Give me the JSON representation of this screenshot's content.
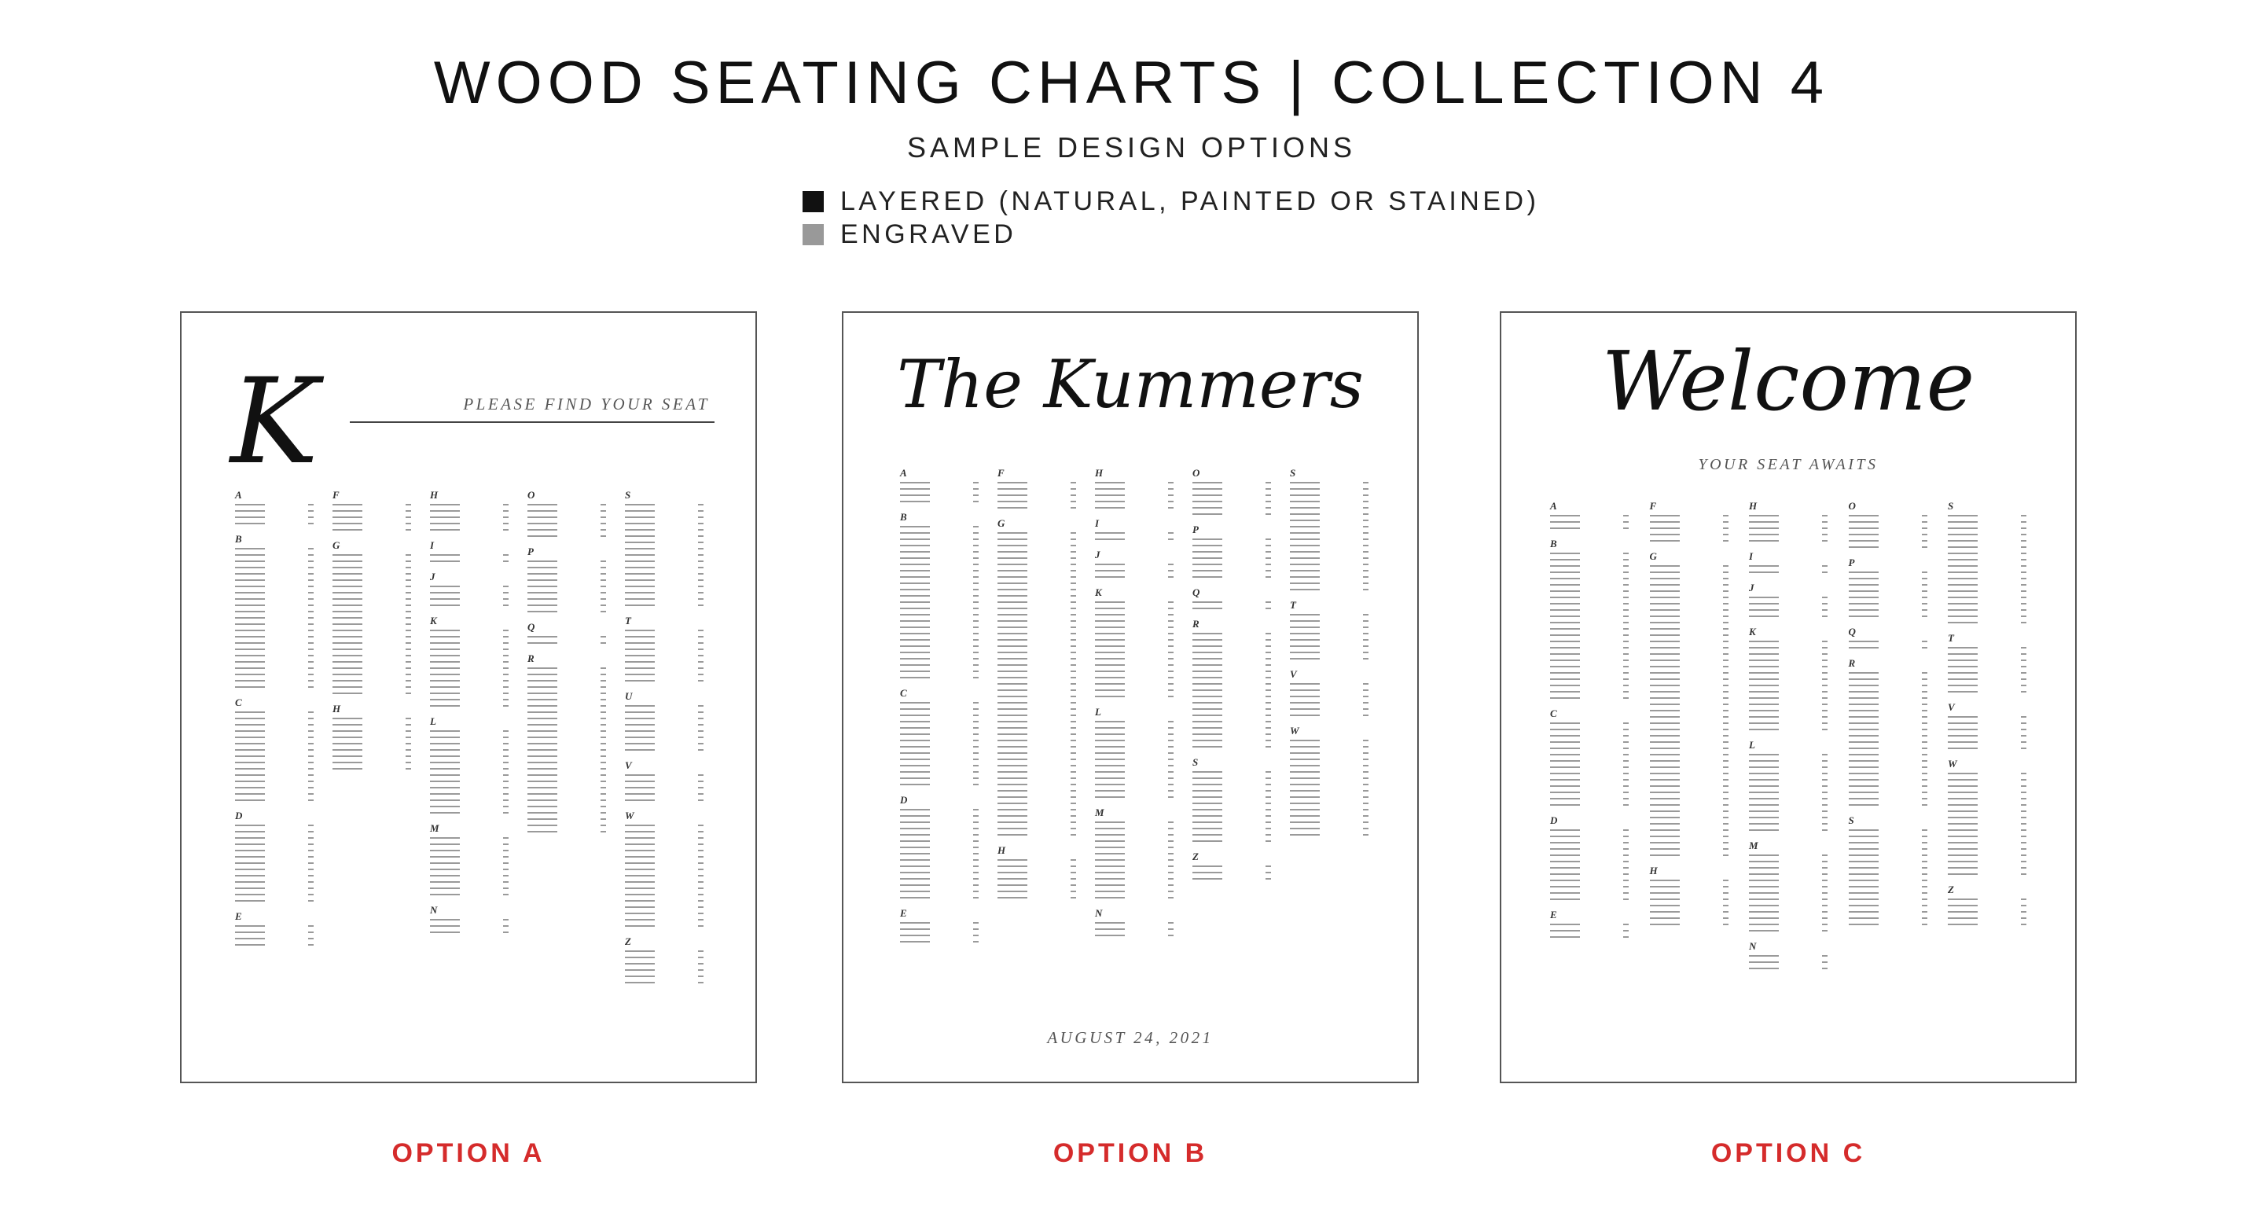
{
  "header": {
    "title": "WOOD SEATING CHARTS | COLLECTION 4",
    "subtitle": "SAMPLE DESIGN OPTIONS"
  },
  "legend": [
    {
      "label": "LAYERED (NATURAL, PAINTED OR STAINED)",
      "color": "#111111"
    },
    {
      "label": "ENGRAVED",
      "color": "#999999"
    }
  ],
  "charts": {
    "a": {
      "monogram": "K",
      "tagline": "PLEASE FIND YOUR SEAT",
      "option_label": "OPTION A",
      "columns": [
        [
          {
            "letter": "A",
            "rows": 4
          },
          {
            "letter": "B",
            "rows": 23
          },
          {
            "letter": "C",
            "rows": 15
          },
          {
            "letter": "D",
            "rows": 13
          },
          {
            "letter": "E",
            "rows": 4
          }
        ],
        [
          {
            "letter": "F",
            "rows": 5
          },
          {
            "letter": "G",
            "rows": 23
          },
          {
            "letter": "H",
            "rows": 9
          }
        ],
        [
          {
            "letter": "H",
            "rows": 5
          },
          {
            "letter": "I",
            "rows": 2
          },
          {
            "letter": "J",
            "rows": 4
          },
          {
            "letter": "K",
            "rows": 13
          },
          {
            "letter": "L",
            "rows": 14
          },
          {
            "letter": "M",
            "rows": 10
          },
          {
            "letter": "N",
            "rows": 3
          }
        ],
        [
          {
            "letter": "O",
            "rows": 6
          },
          {
            "letter": "P",
            "rows": 9
          },
          {
            "letter": "Q",
            "rows": 2
          },
          {
            "letter": "R",
            "rows": 27
          }
        ],
        [
          {
            "letter": "S",
            "rows": 17
          },
          {
            "letter": "T",
            "rows": 9
          },
          {
            "letter": "U",
            "rows": 8
          },
          {
            "letter": "V",
            "rows": 5
          },
          {
            "letter": "W",
            "rows": 17
          },
          {
            "letter": "Z",
            "rows": 6
          }
        ]
      ]
    },
    "b": {
      "heading": "The Kummers",
      "date": "AUGUST 24, 2021",
      "option_label": "OPTION B",
      "columns": [
        [
          {
            "letter": "A",
            "rows": 4
          },
          {
            "letter": "B",
            "rows": 25
          },
          {
            "letter": "C",
            "rows": 14
          },
          {
            "letter": "D",
            "rows": 15
          },
          {
            "letter": "E",
            "rows": 4
          }
        ],
        [
          {
            "letter": "F",
            "rows": 5
          },
          {
            "letter": "G",
            "rows": 49
          },
          {
            "letter": "H",
            "rows": 7
          }
        ],
        [
          {
            "letter": "H",
            "rows": 5
          },
          {
            "letter": "I",
            "rows": 2
          },
          {
            "letter": "J",
            "rows": 3
          },
          {
            "letter": "K",
            "rows": 16
          },
          {
            "letter": "L",
            "rows": 13
          },
          {
            "letter": "M",
            "rows": 13
          },
          {
            "letter": "N",
            "rows": 3
          }
        ],
        [
          {
            "letter": "O",
            "rows": 6
          },
          {
            "letter": "P",
            "rows": 7
          },
          {
            "letter": "Q",
            "rows": 2
          },
          {
            "letter": "R",
            "rows": 19
          },
          {
            "letter": "S",
            "rows": 12
          },
          {
            "letter": "Z",
            "rows": 3
          }
        ],
        [
          {
            "letter": "S",
            "rows": 18
          },
          {
            "letter": "T",
            "rows": 8
          },
          {
            "letter": "V",
            "rows": 6
          },
          {
            "letter": "W",
            "rows": 16
          }
        ]
      ]
    },
    "c": {
      "heading": "Welcome",
      "tagline": "YOUR SEAT AWAITS",
      "option_label": "OPTION C",
      "columns": [
        [
          {
            "letter": "A",
            "rows": 3
          },
          {
            "letter": "B",
            "rows": 24
          },
          {
            "letter": "C",
            "rows": 14
          },
          {
            "letter": "D",
            "rows": 12
          },
          {
            "letter": "E",
            "rows": 3
          }
        ],
        [
          {
            "letter": "F",
            "rows": 5
          },
          {
            "letter": "G",
            "rows": 47
          },
          {
            "letter": "H",
            "rows": 8
          }
        ],
        [
          {
            "letter": "H",
            "rows": 5
          },
          {
            "letter": "I",
            "rows": 2
          },
          {
            "letter": "J",
            "rows": 4
          },
          {
            "letter": "K",
            "rows": 15
          },
          {
            "letter": "L",
            "rows": 13
          },
          {
            "letter": "M",
            "rows": 13
          },
          {
            "letter": "N",
            "rows": 3
          }
        ],
        [
          {
            "letter": "O",
            "rows": 6
          },
          {
            "letter": "P",
            "rows": 8
          },
          {
            "letter": "Q",
            "rows": 2
          },
          {
            "letter": "R",
            "rows": 22
          },
          {
            "letter": "S",
            "rows": 16
          }
        ],
        [
          {
            "letter": "S",
            "rows": 18
          },
          {
            "letter": "T",
            "rows": 8
          },
          {
            "letter": "V",
            "rows": 6
          },
          {
            "letter": "W",
            "rows": 17
          },
          {
            "letter": "Z",
            "rows": 5
          }
        ]
      ]
    }
  }
}
